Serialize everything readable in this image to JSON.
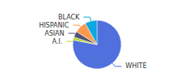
{
  "chart_data": {
    "type": "pie",
    "categories": [
      "WHITE",
      "A.I.",
      "ASIAN",
      "HISPANIC",
      "BLACK"
    ],
    "values": [
      78,
      2,
      4,
      8,
      8
    ]
  }
}
